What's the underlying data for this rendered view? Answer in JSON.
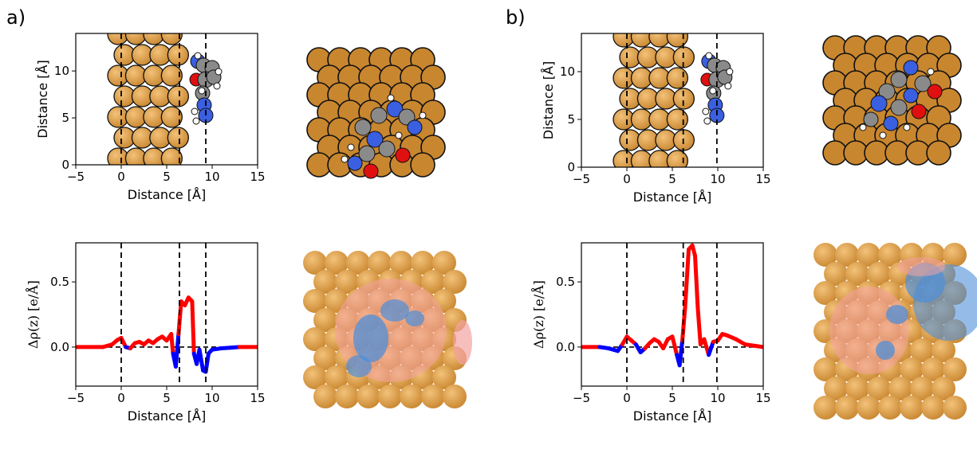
{
  "panels": {
    "a": {
      "label": "a)"
    },
    "b": {
      "label": "b)"
    }
  },
  "colors": {
    "copper": "#c8862f",
    "copper_light": "#f3c27a",
    "positive": "#ff0000",
    "negative": "#0000ff",
    "carbon": "#8a8a8a",
    "nitrogen": "#3a5fe0",
    "oxygen": "#e01010",
    "hydrogen": "#ffffff",
    "iso_positive": "#f4a3a3",
    "iso_negative": "#4f8fd8"
  },
  "chart_data": [
    {
      "id": "a-geometry",
      "type": "scatter",
      "title": "",
      "xlabel": "Distance [Å]",
      "ylabel": "Distance [Å]",
      "xlim": [
        -5,
        15
      ],
      "ylim": [
        0,
        14
      ],
      "xticks": [
        "−5",
        "0",
        "5",
        "10",
        "15"
      ],
      "yticks": [
        "0",
        "5",
        "10"
      ],
      "vlines": [
        0,
        6.4,
        9.3
      ],
      "series": []
    },
    {
      "id": "b-geometry",
      "type": "scatter",
      "title": "",
      "xlabel": "Distance [Å]",
      "ylabel": "Distance [Å]",
      "xlim": [
        -5,
        15
      ],
      "ylim": [
        0,
        14
      ],
      "xticks": [
        "−5",
        "0",
        "5",
        "10",
        "15"
      ],
      "yticks": [
        "0",
        "5",
        "10"
      ],
      "vlines": [
        0,
        6.2,
        9.9
      ],
      "series": []
    },
    {
      "id": "a-density",
      "type": "line",
      "title": "",
      "xlabel": "Distance [Å]",
      "ylabel": "Δρ(z) [e/Å]",
      "xlim": [
        -5,
        15
      ],
      "ylim": [
        -0.3,
        0.8
      ],
      "xticks": [
        "−5",
        "0",
        "5",
        "10",
        "15"
      ],
      "yticks": [
        "0.0",
        "0.5"
      ],
      "vlines": [
        0,
        6.4,
        9.3
      ],
      "x": [
        -5,
        -2,
        -1,
        -0.5,
        0,
        0.5,
        1,
        1.5,
        2,
        2.5,
        3,
        3.5,
        4,
        4.5,
        5,
        5.5,
        5.7,
        6,
        6.3,
        6.6,
        7,
        7.4,
        7.8,
        8,
        8.3,
        8.6,
        9,
        9.3,
        9.6,
        10,
        11,
        12,
        13,
        15
      ],
      "y": [
        0,
        0,
        0.02,
        0.05,
        0.07,
        0.0,
        -0.01,
        0.03,
        0.04,
        0.02,
        0.05,
        0.03,
        0.06,
        0.08,
        0.05,
        0.1,
        -0.05,
        -0.15,
        0.1,
        0.35,
        0.32,
        0.38,
        0.35,
        -0.05,
        -0.13,
        -0.02,
        -0.18,
        -0.19,
        -0.05,
        -0.02,
        -0.01,
        -0.005,
        0,
        0
      ]
    },
    {
      "id": "b-density",
      "type": "line",
      "title": "",
      "xlabel": "Distance [Å]",
      "ylabel": "Δρ(z) [e/Å]",
      "xlim": [
        -5,
        15
      ],
      "ylim": [
        -0.3,
        0.8
      ],
      "xticks": [
        "−5",
        "0",
        "5",
        "10",
        "15"
      ],
      "yticks": [
        "0.0",
        "0.5"
      ],
      "vlines": [
        0,
        6.2,
        9.9
      ],
      "x": [
        -5,
        -3,
        -2,
        -1,
        -0.5,
        0,
        0.5,
        1,
        1.5,
        2,
        2.5,
        3,
        3.5,
        4,
        4.5,
        5,
        5.5,
        5.8,
        6.1,
        6.4,
        6.8,
        7.2,
        7.5,
        7.8,
        8.1,
        8.5,
        9,
        9.5,
        10,
        10.5,
        11,
        12,
        13,
        15
      ],
      "y": [
        0,
        0,
        -0.01,
        -0.03,
        0.02,
        0.08,
        0.05,
        0.02,
        -0.04,
        -0.01,
        0.03,
        0.06,
        0.04,
        -0.01,
        0.06,
        0.08,
        -0.06,
        -0.14,
        0.05,
        0.3,
        0.75,
        0.78,
        0.7,
        0.3,
        0.02,
        0.06,
        -0.06,
        0.04,
        0.05,
        0.1,
        0.09,
        0.06,
        0.02,
        0.0
      ]
    }
  ]
}
